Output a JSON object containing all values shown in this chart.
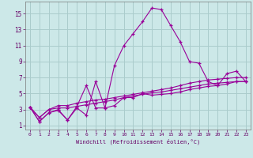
{
  "xlabel": "Windchill (Refroidissement éolien,°C)",
  "bg_color": "#cce8e8",
  "grid_color": "#aacccc",
  "line_color": "#990099",
  "x_ticks": [
    0,
    1,
    2,
    3,
    4,
    5,
    6,
    7,
    8,
    9,
    10,
    11,
    12,
    13,
    14,
    15,
    16,
    17,
    18,
    19,
    20,
    21,
    22,
    23
  ],
  "y_ticks": [
    1,
    3,
    5,
    7,
    9,
    11,
    13,
    15
  ],
  "xlim": [
    -0.5,
    23.5
  ],
  "ylim": [
    0.5,
    16.5
  ],
  "series": [
    [
      3.3,
      1.5,
      2.6,
      2.9,
      1.7,
      3.2,
      2.3,
      6.5,
      3.2,
      8.5,
      11.0,
      12.5,
      14.0,
      15.7,
      15.5,
      13.5,
      11.5,
      9.0,
      8.8,
      6.5,
      6.0,
      7.5,
      7.8,
      6.5
    ],
    [
      3.3,
      1.5,
      2.6,
      3.0,
      1.7,
      3.4,
      6.0,
      3.2,
      3.2,
      3.5,
      4.5,
      4.5,
      5.0,
      4.8,
      4.9,
      5.0,
      5.2,
      5.5,
      5.7,
      5.9,
      6.0,
      6.2,
      6.5,
      6.5
    ],
    [
      3.3,
      2.0,
      3.0,
      3.5,
      3.5,
      3.8,
      4.0,
      4.2,
      4.3,
      4.5,
      4.7,
      4.9,
      5.1,
      5.3,
      5.5,
      5.7,
      6.0,
      6.3,
      6.5,
      6.7,
      6.8,
      6.9,
      7.0,
      7.0
    ],
    [
      3.3,
      2.0,
      3.0,
      3.2,
      3.2,
      3.4,
      3.6,
      3.8,
      4.0,
      4.2,
      4.5,
      4.7,
      4.9,
      5.1,
      5.2,
      5.4,
      5.6,
      5.8,
      6.0,
      6.2,
      6.3,
      6.4,
      6.5,
      6.5
    ]
  ]
}
